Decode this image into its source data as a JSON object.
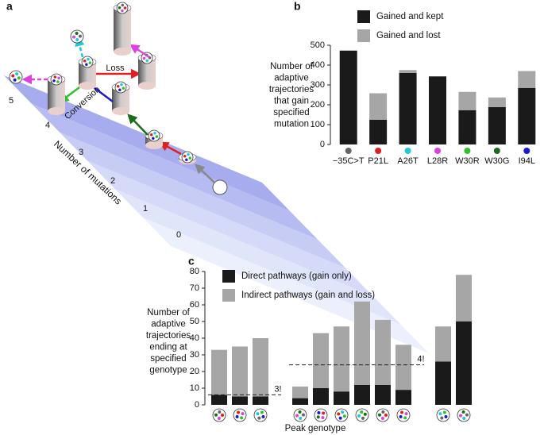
{
  "panel_labels": [
    "a",
    "b",
    "c"
  ],
  "panel_a": {
    "mutation_levels": [
      "0",
      "1",
      "2",
      "3",
      "4",
      "5"
    ],
    "axis_label": "Number of mutations",
    "arrow_labels": [
      "Loss",
      "Conversion"
    ]
  },
  "chart_data": [
    {
      "type": "stacked-bar",
      "ylabel": [
        "Number of",
        "adaptive",
        "trajectories",
        "that gain",
        "specified",
        "mutation"
      ],
      "categories": [
        "−35C>T",
        "P21L",
        "A26T",
        "L28R",
        "W30R",
        "W30G",
        "I94L"
      ],
      "category_colors": [
        "#666666",
        "#e02020",
        "#20c8d8",
        "#e040e0",
        "#30c030",
        "#1a6e1a",
        "#1a1ad0"
      ],
      "series": [
        {
          "name": "Gained and kept",
          "color": "#1a1a1a",
          "values": [
            473,
            125,
            360,
            343,
            173,
            188,
            285
          ]
        },
        {
          "name": "Gained and lost",
          "color": "#a6a6a6",
          "values": [
            0,
            133,
            15,
            0,
            92,
            49,
            85
          ]
        }
      ],
      "ylim": [
        0,
        500
      ],
      "yticks": [
        0,
        100,
        200,
        300,
        400,
        500
      ]
    },
    {
      "type": "stacked-bar",
      "ylabel": [
        "Number of",
        "adaptive",
        "trajectories",
        "ending at",
        "specified",
        "genotype"
      ],
      "xlabel": "Peak genotype",
      "categories": [
        null,
        null,
        null,
        null,
        null,
        null,
        null,
        null,
        null,
        null,
        null
      ],
      "groups": [
        3,
        6,
        2
      ],
      "series": [
        {
          "name": "Direct pathways (gain only)",
          "color": "#1a1a1a",
          "values": [
            6,
            5,
            5,
            4,
            10,
            8,
            12,
            12,
            9,
            26,
            50
          ]
        },
        {
          "name": "Indirect pathways (gain and loss)",
          "color": "#a6a6a6",
          "values": [
            27,
            30,
            35,
            7,
            33,
            39,
            50,
            39,
            27,
            21,
            28
          ]
        }
      ],
      "reference_lines": [
        {
          "value": 6,
          "label": "3!",
          "group": 0
        },
        {
          "value": 24,
          "label": "4!",
          "group": 1
        }
      ],
      "ylim": [
        0,
        80
      ],
      "yticks": [
        0,
        10,
        20,
        30,
        40,
        50,
        60,
        70,
        80
      ]
    }
  ]
}
